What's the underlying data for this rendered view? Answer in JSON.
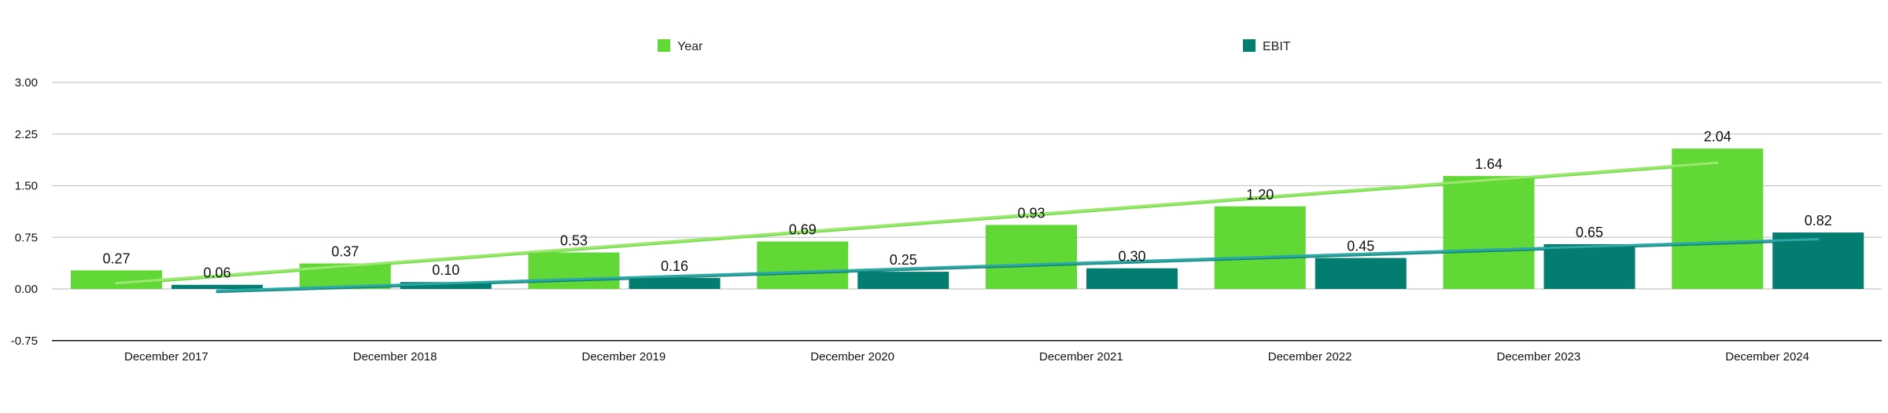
{
  "chart_data": {
    "type": "bar",
    "categories": [
      "December 2017",
      "December 2018",
      "December 2019",
      "December 2020",
      "December 2021",
      "December 2022",
      "December 2023",
      "December 2024"
    ],
    "series": [
      {
        "name": "Year",
        "values": [
          0.27,
          0.37,
          0.53,
          0.69,
          0.93,
          1.2,
          1.64,
          2.04
        ],
        "color": "#62d837"
      },
      {
        "name": "EBIT",
        "values": [
          0.06,
          0.1,
          0.16,
          0.25,
          0.3,
          0.45,
          0.65,
          0.82
        ],
        "color": "#047d71"
      }
    ],
    "data_labels": [
      [
        "0.27",
        "0.37",
        "0.53",
        "0.69",
        "0.93",
        "1.20",
        "1.64",
        "2.04"
      ],
      [
        "0.06",
        "0.10",
        "0.16",
        "0.25",
        "0.30",
        "0.45",
        "0.65",
        "0.82"
      ]
    ],
    "yticks": [
      "3.00",
      "2.25",
      "1.50",
      "0.75",
      "0.00",
      "-0.75"
    ],
    "ylim": [
      -0.75,
      3.0
    ],
    "trendlines": true,
    "trendline_colors": [
      "#9be86f",
      "#2ca8a6"
    ],
    "grid": true,
    "legend_position": "top-center",
    "title": "",
    "xlabel": "",
    "ylabel": ""
  }
}
